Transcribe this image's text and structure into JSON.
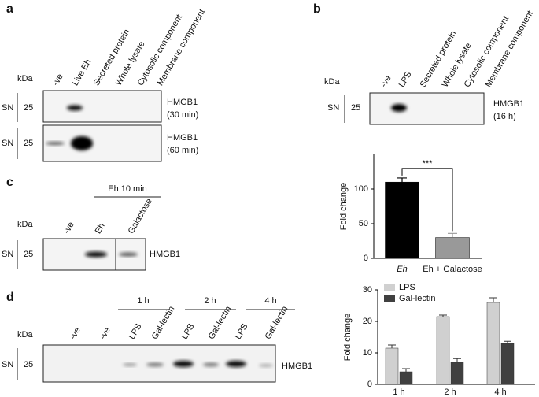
{
  "panels": {
    "a": {
      "label": "a",
      "kda": "kDa",
      "sn": [
        "SN",
        "SN"
      ],
      "marker": [
        "25",
        "25"
      ],
      "lanes": [
        "-ve",
        "Live Eh",
        "Secreted protein",
        "Whole lysate",
        "Cytosolic component",
        "Membrane component"
      ],
      "blots": [
        {
          "target": "HMGB1",
          "time": "(30 min)"
        },
        {
          "target": "HMGB1",
          "time": "(60 min)"
        }
      ]
    },
    "b": {
      "label": "b",
      "kda": "kDa",
      "sn": "SN",
      "marker": "25",
      "lanes": [
        "-ve",
        "LPS",
        "Secreted protein",
        "Whole lysate",
        "Cytosolic component",
        "Membrane component"
      ],
      "blot": {
        "target": "HMGB1",
        "time": "(16 h)"
      }
    },
    "c": {
      "label": "c",
      "kda": "kDa",
      "sn": "SN",
      "marker": "25",
      "group": "Eh 10 min",
      "lanes": [
        "-ve",
        "Eh",
        "Galactose"
      ],
      "blot": {
        "target": "HMGB1"
      }
    },
    "d": {
      "label": "d",
      "kda": "kDa",
      "sn": "SN",
      "marker": "25",
      "times": [
        "1 h",
        "2 h",
        "4 h"
      ],
      "lanes": [
        "-ve",
        "-ve",
        "LPS",
        "Gal-lectin",
        "LPS",
        "Gal-lectin",
        "LPS",
        "Gal-lectin"
      ],
      "blot": {
        "target": "HMGB1"
      }
    }
  },
  "chart_data": [
    {
      "type": "bar",
      "ylabel": "Fold change",
      "categories": [
        "Eh",
        "Eh + Galactose"
      ],
      "values": [
        110,
        30
      ],
      "errors": [
        6,
        6
      ],
      "colors": [
        "#000000",
        "#999999"
      ],
      "annotation": "***",
      "ylim": [
        0,
        150
      ],
      "yticks": [
        0,
        50,
        100
      ]
    },
    {
      "type": "grouped-bar",
      "ylabel": "Fold change",
      "categories": [
        "1 h",
        "2 h",
        "4 h"
      ],
      "series": [
        {
          "name": "LPS",
          "color": "#d0d0d0",
          "values": [
            11.5,
            21.5,
            26
          ],
          "errors": [
            1,
            0.5,
            1.5
          ]
        },
        {
          "name": "Gal-lectin",
          "color": "#404040",
          "values": [
            4,
            7,
            13
          ],
          "errors": [
            1,
            1.2,
            0.7
          ]
        }
      ],
      "legend": "upper left",
      "ylim": [
        0,
        30
      ],
      "yticks": [
        0,
        10,
        20,
        30
      ]
    }
  ]
}
